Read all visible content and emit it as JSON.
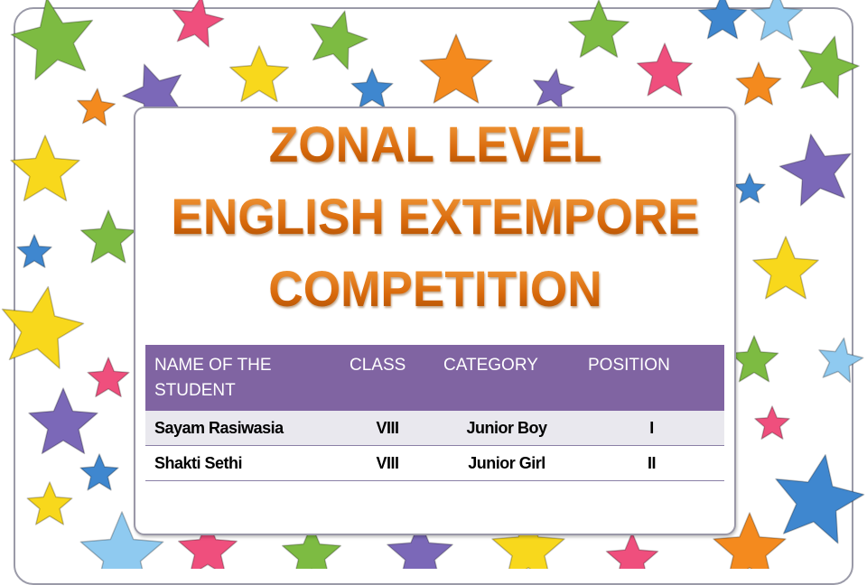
{
  "title": {
    "line1": "ZONAL LEVEL",
    "line2": "ENGLISH EXTEMPORE",
    "line3": "COMPETITION"
  },
  "table": {
    "headers": [
      "NAME OF THE STUDENT",
      "CLASS",
      "CATEGORY",
      "POSITION"
    ],
    "rows": [
      {
        "name": "Sayam Rasiwasia",
        "class": "VIII",
        "category": "Junior Boy",
        "position": "I"
      },
      {
        "name": "Shakti Sethi",
        "class": "VIII",
        "category": "Junior Girl",
        "position": "II"
      }
    ]
  },
  "colors": {
    "header_bg": "#8064a2",
    "title_orange": "#e07a14",
    "star_colors": [
      "#7dbb42",
      "#ef4f7d",
      "#f8d81c",
      "#f48a1e",
      "#7b68b8",
      "#3f87cf",
      "#8fcaf0"
    ]
  }
}
